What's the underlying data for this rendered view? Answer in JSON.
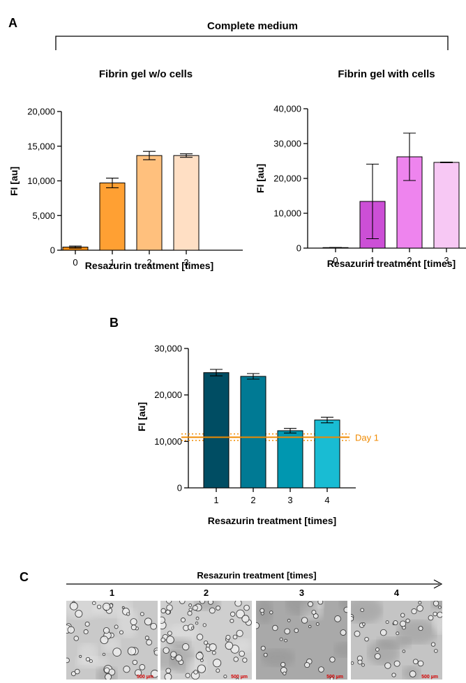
{
  "panel_labels": {
    "a": "A",
    "b": "B",
    "c": "C"
  },
  "panel_a": {
    "bracket_title": "Complete medium"
  },
  "chart_data": [
    {
      "id": "a1",
      "type": "bar",
      "title": "Fibrin gel w/o cells",
      "ylabel": "FI [au]",
      "xlabel": "Resazurin treatment [times]",
      "categories": [
        "0",
        "1",
        "2",
        "3"
      ],
      "values": [
        450,
        9700,
        13650,
        13650
      ],
      "errors": [
        150,
        700,
        600,
        250
      ],
      "ylim": [
        0,
        20000
      ],
      "yticks": [
        0,
        5000,
        10000,
        15000,
        20000
      ],
      "ytick_labels": [
        "0",
        "5,000",
        "10,000",
        "15,000",
        "20,000"
      ],
      "colors": [
        "#f28c14",
        "#ffa033",
        "#ffc07d",
        "#ffdfc4"
      ]
    },
    {
      "id": "a2",
      "type": "bar",
      "title": "Fibrin gel with cells",
      "ylabel": "FI [au]",
      "xlabel": "Resazurin treatment [times]",
      "categories": [
        "0",
        "1",
        "2",
        "3"
      ],
      "values": [
        150,
        13400,
        26200,
        24600
      ],
      "errors": [
        50,
        10700,
        6800,
        100
      ],
      "ylim": [
        0,
        40000
      ],
      "yticks": [
        0,
        10000,
        20000,
        30000,
        40000
      ],
      "ytick_labels": [
        "0",
        "10,000",
        "20,000",
        "30,000",
        "40,000"
      ],
      "colors": [
        "#9c2fb5",
        "#cc4fd6",
        "#ee84ee",
        "#f7c8f4"
      ]
    },
    {
      "id": "b",
      "type": "bar",
      "ylabel": "FI [au]",
      "xlabel": "Resazurin treatment [times]",
      "categories": [
        "1",
        "2",
        "3",
        "4"
      ],
      "values": [
        24800,
        24000,
        12300,
        14600
      ],
      "errors": [
        700,
        600,
        500,
        600
      ],
      "ylim": [
        0,
        30000
      ],
      "yticks": [
        0,
        10000,
        20000,
        30000
      ],
      "ytick_labels": [
        "0",
        "10,000",
        "20,000",
        "30,000"
      ],
      "colors": [
        "#004d63",
        "#007a94",
        "#0097b0",
        "#19bcd3"
      ],
      "reference_line": {
        "label": "Day 1",
        "value": 10900,
        "band": [
          10200,
          11600
        ],
        "color": "#f08a00"
      }
    }
  ],
  "panel_c": {
    "axis_title": "Resazurin treatment [times]",
    "images": [
      {
        "label": "1",
        "scale": "500 µm"
      },
      {
        "label": "2",
        "scale": "500 µm"
      },
      {
        "label": "3",
        "scale": "500 µm"
      },
      {
        "label": "4",
        "scale": "500 µm"
      }
    ]
  }
}
